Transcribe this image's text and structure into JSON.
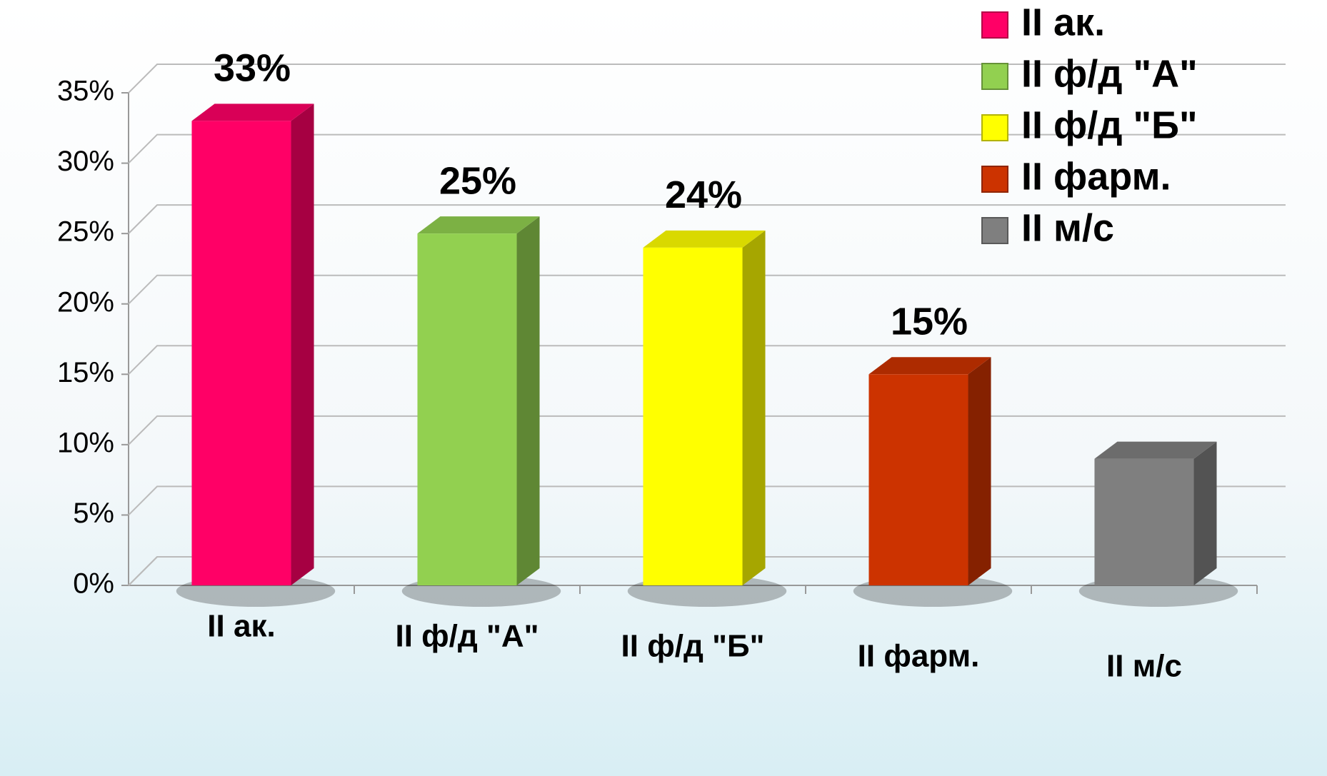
{
  "chart_data": {
    "type": "bar3d",
    "categories": [
      "II ак.",
      "II ф/д \"А\"",
      "II ф/д \"Б\"",
      "II фарм.",
      "II м/с"
    ],
    "values": [
      33,
      25,
      24,
      15,
      9
    ],
    "value_labels": [
      "33%",
      "25%",
      "24%",
      "15%",
      null
    ],
    "colors": [
      "#ff0066",
      "#92d050",
      "#ffff00",
      "#cc3300",
      "#7f7f7f"
    ],
    "ylim": [
      0,
      35
    ],
    "yticks": [
      {
        "value": 0,
        "label": "0%"
      },
      {
        "value": 5,
        "label": "5%"
      },
      {
        "value": 10,
        "label": "10%"
      },
      {
        "value": 15,
        "label": "15%"
      },
      {
        "value": 20,
        "label": "20%"
      },
      {
        "value": 25,
        "label": "25%"
      },
      {
        "value": 30,
        "label": "30%"
      },
      {
        "value": 35,
        "label": "35%"
      }
    ],
    "grid": true,
    "legend": "top-right"
  }
}
